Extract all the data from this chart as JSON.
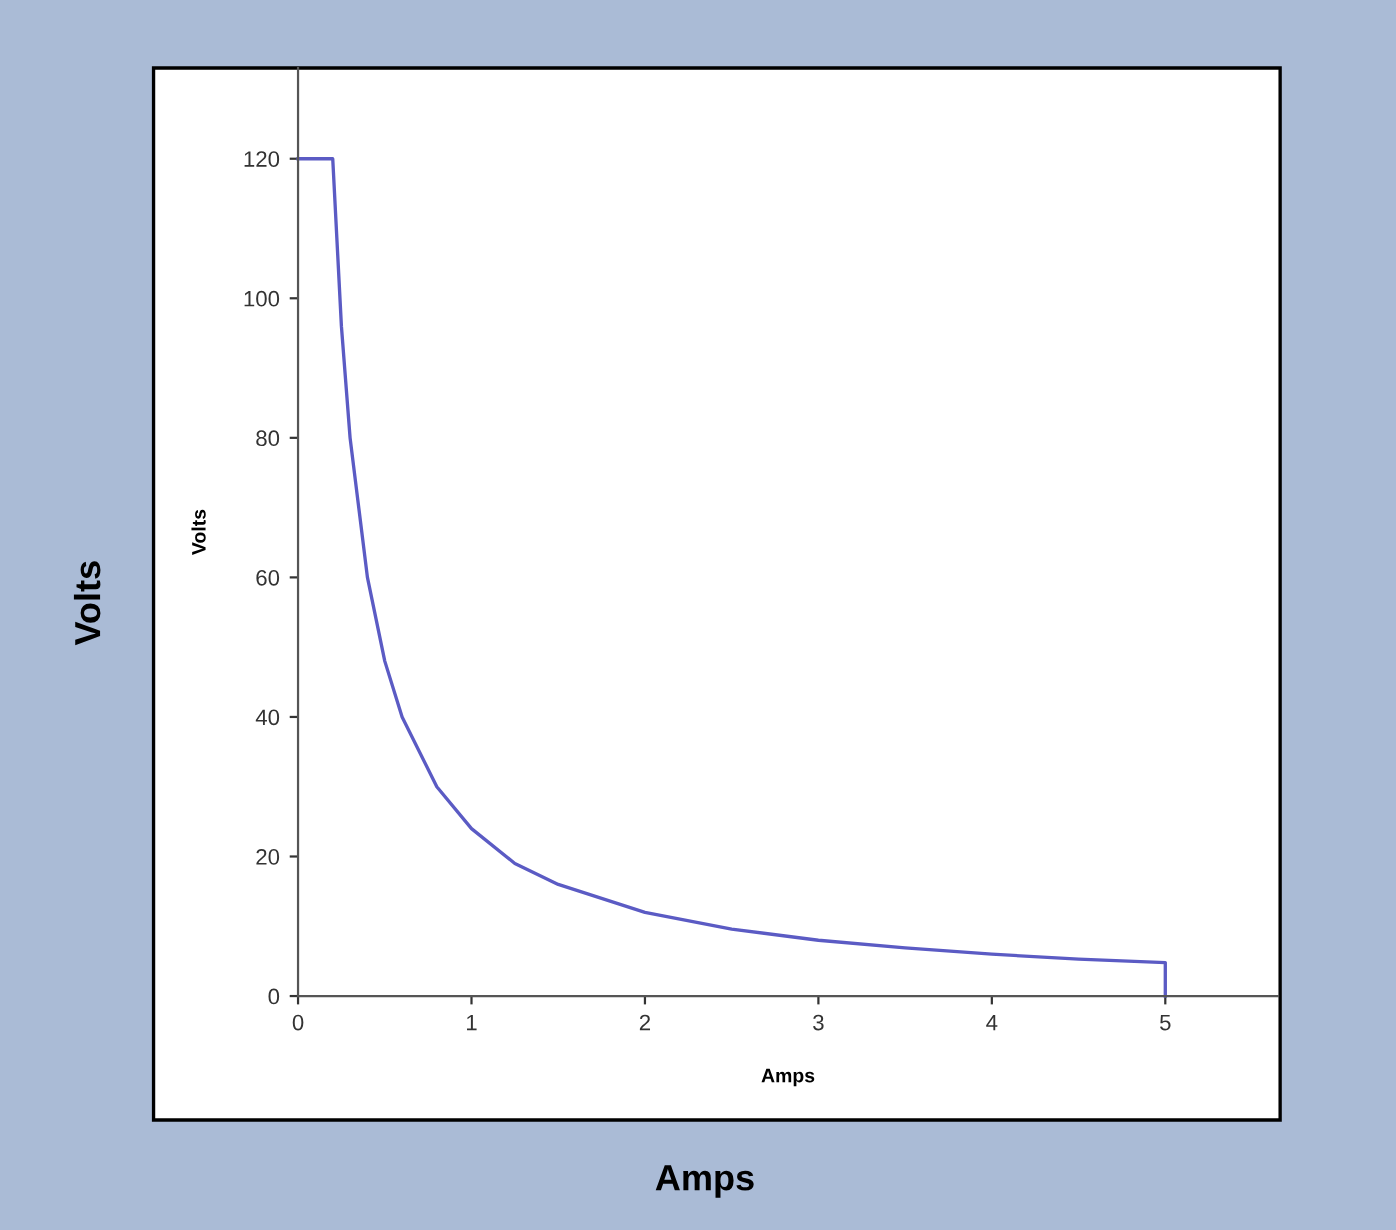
{
  "chart_data": {
    "type": "line",
    "xlabel": "Amps",
    "ylabel": "Volts",
    "annotations": [
      "Volts",
      "Amps"
    ],
    "x": [
      0,
      0.2,
      0.25,
      0.3,
      0.4,
      0.5,
      0.6,
      0.8,
      1,
      1.25,
      1.5,
      2,
      2.5,
      3,
      3.5,
      4,
      4.5,
      5,
      5
    ],
    "series": [
      {
        "color": "#5b5bc4",
        "values": [
          120,
          120,
          96,
          80,
          60,
          48,
          40,
          30,
          24,
          19,
          16,
          12,
          9.6,
          8,
          6.9,
          6,
          5.3,
          4.8,
          0
        ]
      }
    ],
    "xlim": [
      0,
      5.65
    ],
    "ylim": [
      0,
      133
    ],
    "xticks": [
      0,
      1,
      2,
      3,
      4,
      5
    ],
    "yticks": [
      0,
      20,
      40,
      60,
      80,
      100,
      120
    ],
    "grid": false,
    "legend": false,
    "marker": "none",
    "line_style": "solid"
  }
}
